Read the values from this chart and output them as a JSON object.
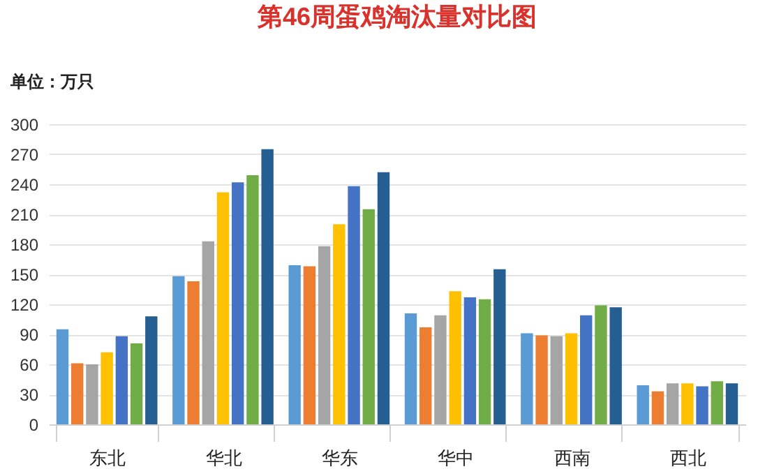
{
  "chart_data": {
    "type": "bar",
    "title": "第46周蛋鸡淘汰量对比图",
    "ylabel": "单位：万只",
    "categories": [
      "东北",
      "华北",
      "华东",
      "华中",
      "西南",
      "西北"
    ],
    "series": [
      {
        "color": "#5b9bd5",
        "values": [
          95,
          148,
          159,
          111,
          91,
          39
        ]
      },
      {
        "color": "#ed7d31",
        "values": [
          61,
          143,
          158,
          97,
          89,
          33
        ]
      },
      {
        "color": "#a5a5a5",
        "values": [
          60,
          183,
          178,
          109,
          88,
          41
        ]
      },
      {
        "color": "#ffc000",
        "values": [
          72,
          232,
          200,
          133,
          91,
          41
        ]
      },
      {
        "color": "#4472c4",
        "values": [
          88,
          242,
          238,
          127,
          109,
          38
        ]
      },
      {
        "color": "#70ad47",
        "values": [
          81,
          249,
          215,
          125,
          119,
          43
        ]
      },
      {
        "color": "#255e91",
        "values": [
          108,
          275,
          252,
          155,
          117,
          41
        ]
      }
    ],
    "ylim": [
      0,
      300
    ],
    "yticks": [
      0,
      30,
      60,
      90,
      120,
      150,
      180,
      210,
      240,
      270,
      300
    ],
    "grid": "y"
  }
}
